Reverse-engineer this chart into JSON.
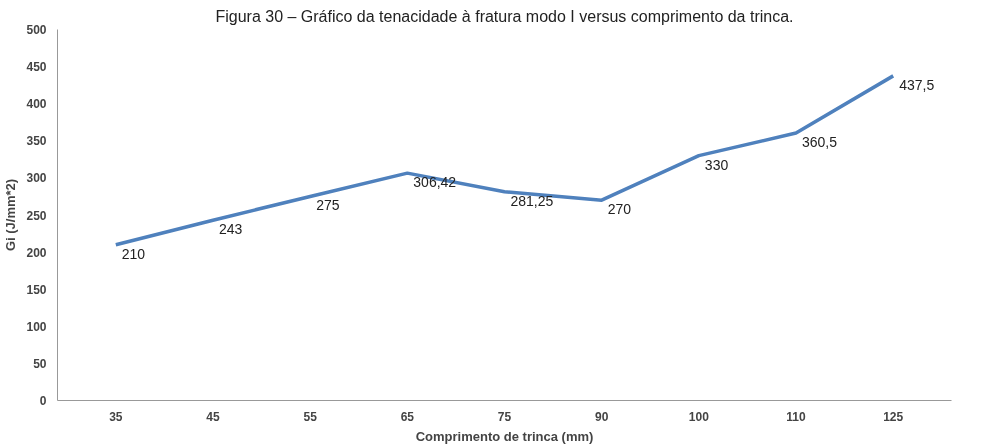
{
  "chart_data": {
    "type": "line",
    "title": "Figura 30 – Gráfico da tenacidade à fratura modo I versus comprimento da trinca.",
    "xlabel": "Comprimento de trinca (mm)",
    "ylabel": "Gi (J/mm*2)",
    "categories": [
      "35",
      "45",
      "55",
      "65",
      "75",
      "90",
      "100",
      "110",
      "125"
    ],
    "series": [
      {
        "color": "#4f81bd",
        "values": [
          210,
          243,
          275,
          306.42,
          281.25,
          270,
          330,
          360.5,
          437.5
        ],
        "value_labels": [
          "210",
          "243",
          "275",
          "306,42",
          "281,25",
          "270",
          "330",
          "360,5",
          "437,5"
        ]
      }
    ],
    "ylim": [
      0,
      500
    ],
    "yticks": [
      0,
      50,
      100,
      150,
      200,
      250,
      300,
      350,
      400,
      450,
      500
    ],
    "grid": false,
    "marker": "none",
    "line_style": "solid"
  }
}
